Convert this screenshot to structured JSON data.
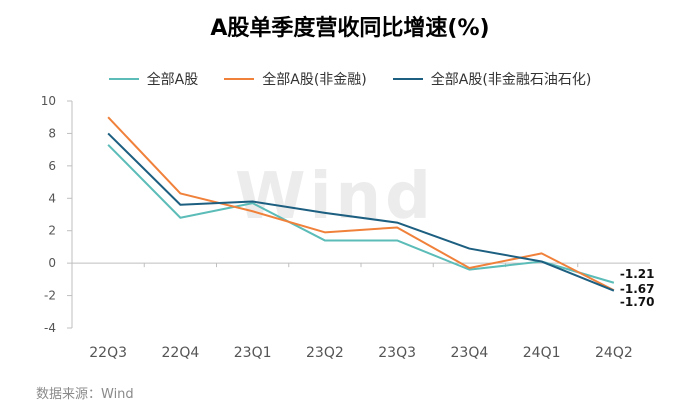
{
  "colors": {
    "series1": "#5bbcb8",
    "series2": "#f0813b",
    "series3": "#1d5f80",
    "axis": "#bfbfbf",
    "text": "#555555"
  },
  "watermark": "Wind",
  "source": "数据来源：Wind",
  "chart_data": {
    "type": "line",
    "title": "A股单季度营收同比增速(%)",
    "categories": [
      "22Q3",
      "22Q4",
      "23Q1",
      "23Q2",
      "23Q3",
      "23Q4",
      "24Q1",
      "24Q2"
    ],
    "ylim": [
      -4,
      10
    ],
    "yticks": [
      -4,
      -2,
      0,
      2,
      4,
      6,
      8,
      10
    ],
    "grid": false,
    "legend_position": "top",
    "series": [
      {
        "name": "全部A股",
        "values": [
          7.3,
          2.8,
          3.7,
          1.4,
          1.4,
          -0.4,
          0.1,
          -1.21
        ]
      },
      {
        "name": "全部A股(非金融)",
        "values": [
          9.0,
          4.3,
          3.2,
          1.9,
          2.2,
          -0.3,
          0.6,
          -1.67
        ]
      },
      {
        "name": "全部A股(非金融石油石化)",
        "values": [
          8.0,
          3.6,
          3.8,
          3.1,
          2.5,
          0.9,
          0.1,
          -1.7
        ]
      }
    ],
    "end_labels": [
      "-1.21",
      "-1.67",
      "-1.70"
    ]
  }
}
